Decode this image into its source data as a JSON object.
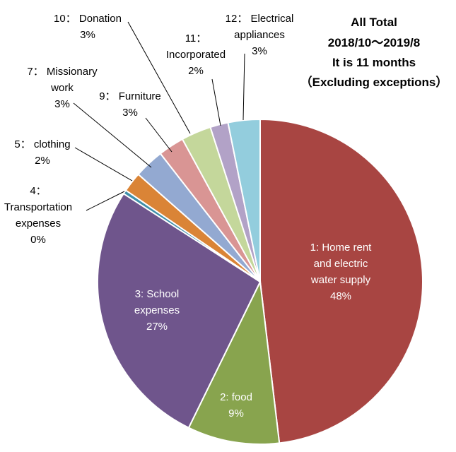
{
  "chart_data": {
    "type": "pie",
    "title_lines": [
      "All Total",
      "2018/10～2019/8",
      "It is 11 months",
      "（Excluding exceptions）"
    ],
    "slices": [
      {
        "label_lines": [
          "1: Home rent",
          "and electric",
          "water supply"
        ],
        "percent_label": "48%",
        "value": 48.5,
        "color": "#A84542"
      },
      {
        "label_lines": [
          "2: food"
        ],
        "percent_label": "9%",
        "value": 9.2,
        "color": "#88A44E"
      },
      {
        "label_lines": [
          "3: School",
          "expenses"
        ],
        "percent_label": "27%",
        "value": 27.1,
        "color": "#6F558C"
      },
      {
        "label_lines": [
          "4：",
          "Transportation",
          "expenses"
        ],
        "percent_label": "0%",
        "value": 0.4,
        "color": "#3F8FA9"
      },
      {
        "label_lines": [
          "5： clothing"
        ],
        "percent_label": "2%",
        "value": 2.0,
        "color": "#DA8436"
      },
      {
        "label_lines": [
          "7： Missionary",
          "work"
        ],
        "percent_label": "3%",
        "value": 3.0,
        "color": "#93A9D1"
      },
      {
        "label_lines": [
          "9： Furniture"
        ],
        "percent_label": "3%",
        "value": 2.6,
        "color": "#D99594"
      },
      {
        "label_lines": [
          "10： Donation"
        ],
        "percent_label": "3%",
        "value": 3.0,
        "color": "#C4D79B"
      },
      {
        "label_lines": [
          "11：",
          "Incorporated"
        ],
        "percent_label": "2%",
        "value": 1.8,
        "color": "#B2A2C7"
      },
      {
        "label_lines": [
          "12： Electrical",
          "appliances"
        ],
        "percent_label": "3%",
        "value": 3.2,
        "color": "#93CDDD"
      }
    ]
  }
}
